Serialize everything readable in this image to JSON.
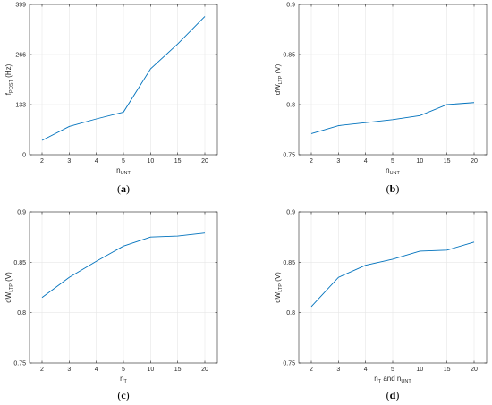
{
  "chart_data": [
    {
      "type": "line",
      "panel_label": "a",
      "categories": [
        "2",
        "3",
        "4",
        "5",
        "10",
        "15",
        "20"
      ],
      "series": [
        {
          "values": [
            38,
            75,
            95,
            113,
            228,
            294,
            367
          ],
          "color": "#0072BD"
        }
      ],
      "ylim": [
        0,
        399
      ],
      "yticks": [
        "0",
        "133",
        "266",
        "399"
      ],
      "ylabel": {
        "main": "f",
        "sub": "POST",
        "tail": " (Hz)"
      },
      "xlabel": {
        "main": "n",
        "sub": "UNT",
        "tail": ""
      },
      "grid": true
    },
    {
      "type": "line",
      "panel_label": "b",
      "categories": [
        "2",
        "3",
        "4",
        "5",
        "10",
        "15",
        "20"
      ],
      "series": [
        {
          "values": [
            0.771,
            0.779,
            0.782,
            0.785,
            0.789,
            0.8,
            0.802
          ],
          "color": "#0072BD"
        }
      ],
      "ylim": [
        0.75,
        0.9
      ],
      "yticks": [
        "0.75",
        "0.8",
        "0.85",
        "0.9"
      ],
      "ylabel": {
        "main": "dW",
        "sub": "LTP",
        "tail": " (V)"
      },
      "xlabel": {
        "main": "n",
        "sub": "UNT",
        "tail": ""
      },
      "grid": true
    },
    {
      "type": "line",
      "panel_label": "c",
      "categories": [
        "2",
        "3",
        "4",
        "5",
        "10",
        "15",
        "20"
      ],
      "series": [
        {
          "values": [
            0.815,
            0.835,
            0.851,
            0.866,
            0.875,
            0.876,
            0.879
          ],
          "color": "#0072BD"
        }
      ],
      "ylim": [
        0.75,
        0.9
      ],
      "yticks": [
        "0.75",
        "0.8",
        "0.85",
        "0.9"
      ],
      "ylabel": {
        "main": "dW",
        "sub": "LTP",
        "tail": " (V)"
      },
      "xlabel": {
        "main": "n",
        "sub": "T",
        "tail": ""
      },
      "grid": true
    },
    {
      "type": "line",
      "panel_label": "d",
      "categories": [
        "2",
        "3",
        "4",
        "5",
        "10",
        "15",
        "20"
      ],
      "series": [
        {
          "values": [
            0.806,
            0.835,
            0.847,
            0.853,
            0.861,
            0.862,
            0.87
          ],
          "color": "#0072BD"
        }
      ],
      "ylim": [
        0.75,
        0.9
      ],
      "yticks": [
        "0.75",
        "0.8",
        "0.85",
        "0.9"
      ],
      "ylabel": {
        "main": "dW",
        "sub": "LTP",
        "tail": " (V)"
      },
      "xlabel": {
        "main": "n",
        "sub": "T",
        "tail": " and n",
        "sub2": "UNT"
      },
      "grid": true
    }
  ]
}
